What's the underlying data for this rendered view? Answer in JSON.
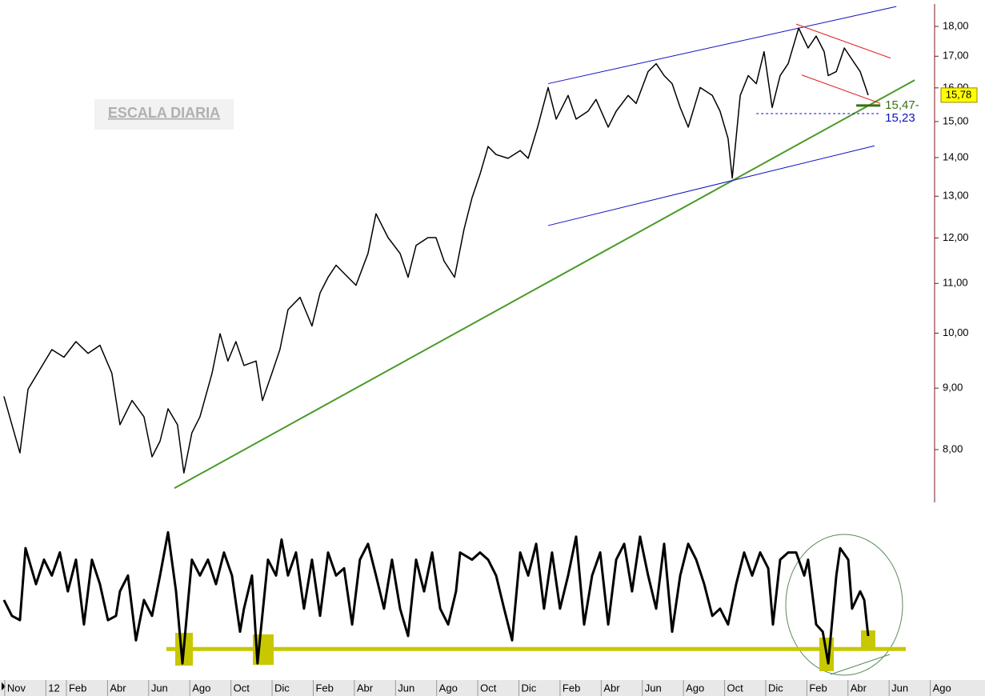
{
  "chart_data": [
    {
      "type": "line",
      "title": "ESCALA DIARIA",
      "log_scale": true,
      "color": "#000000",
      "xlim": [
        -0.54,
        47.35
      ],
      "xticks": [
        {
          "value": 0,
          "label": "Nov"
        },
        {
          "value": 2,
          "label": "12"
        },
        {
          "value": 3,
          "label": "Feb"
        },
        {
          "value": 5,
          "label": "Abr"
        },
        {
          "value": 7,
          "label": "Jun"
        },
        {
          "value": 9,
          "label": "Ago"
        },
        {
          "value": 11,
          "label": "Oct"
        },
        {
          "value": 13,
          "label": "Dic"
        },
        {
          "value": 15,
          "label": "Feb"
        },
        {
          "value": 17,
          "label": "Abr"
        },
        {
          "value": 19,
          "label": "Jun"
        },
        {
          "value": 21,
          "label": "Ago"
        },
        {
          "value": 23,
          "label": "Oct"
        },
        {
          "value": 25,
          "label": "Dic"
        },
        {
          "value": 27,
          "label": "Feb"
        },
        {
          "value": 29,
          "label": "Abr"
        },
        {
          "value": 31,
          "label": "Jun"
        },
        {
          "value": 33,
          "label": "Ago"
        },
        {
          "value": 35,
          "label": "Oct"
        },
        {
          "value": 37,
          "label": "Dic"
        },
        {
          "value": 39,
          "label": "Feb"
        },
        {
          "value": 41,
          "label": "Abr"
        },
        {
          "value": 43,
          "label": "Jun"
        },
        {
          "value": 45,
          "label": "Ago"
        }
      ],
      "ylim": [
        7.23,
        18.79
      ],
      "yticks": [
        {
          "value": 8,
          "label": "8,00"
        },
        {
          "value": 9,
          "label": "9,00"
        },
        {
          "value": 10,
          "label": "10,00"
        },
        {
          "value": 11,
          "label": "11,00"
        },
        {
          "value": 12,
          "label": "12,00"
        },
        {
          "value": 13,
          "label": "13,00"
        },
        {
          "value": 14,
          "label": "14,00"
        },
        {
          "value": 15,
          "label": "15,00"
        },
        {
          "value": 16,
          "label": "16,00"
        },
        {
          "value": 17,
          "label": "17,00"
        },
        {
          "value": 18,
          "label": "18,00"
        }
      ],
      "x": [
        -0.35,
        0.04,
        0.43,
        0.82,
        1.4,
        1.98,
        2.57,
        3.15,
        3.74,
        4.32,
        4.9,
        5.29,
        5.88,
        6.46,
        6.85,
        7.24,
        7.63,
        8.09,
        8.4,
        8.79,
        9.18,
        9.77,
        10.16,
        10.54,
        10.93,
        11.32,
        11.91,
        12.22,
        12.68,
        13.07,
        13.46,
        14.05,
        14.63,
        15.02,
        15.41,
        15.8,
        16.38,
        16.77,
        17.35,
        17.74,
        18.33,
        18.91,
        19.3,
        19.69,
        20.27,
        20.66,
        21.05,
        21.56,
        22.02,
        22.41,
        22.8,
        23.19,
        23.58,
        24.16,
        24.75,
        25.14,
        25.6,
        26.11,
        26.5,
        27.08,
        27.47,
        28.05,
        28.44,
        29.03,
        29.42,
        30.0,
        30.39,
        30.97,
        31.36,
        31.75,
        32.14,
        32.53,
        32.92,
        33.5,
        34.09,
        34.47,
        34.86,
        35.06,
        35.45,
        35.84,
        36.23,
        36.61,
        37.0,
        37.39,
        37.78,
        38.29,
        38.75,
        39.14,
        39.53,
        39.73,
        40.12,
        40.51,
        40.89,
        41.28,
        41.67
      ],
      "values": [
        8.86,
        8.39,
        7.95,
        8.98,
        9.33,
        9.69,
        9.55,
        9.84,
        9.62,
        9.77,
        9.26,
        8.39,
        8.79,
        8.52,
        7.89,
        8.13,
        8.65,
        8.39,
        7.65,
        8.26,
        8.52,
        9.26,
        9.99,
        9.48,
        9.84,
        9.4,
        9.48,
        8.79,
        9.26,
        9.69,
        10.46,
        10.71,
        10.14,
        10.8,
        11.13,
        11.39,
        11.13,
        10.96,
        11.65,
        12.57,
        12.01,
        11.65,
        11.13,
        11.83,
        12.01,
        12.01,
        11.48,
        11.13,
        12.2,
        12.96,
        13.56,
        14.3,
        14.08,
        13.98,
        14.19,
        13.98,
        14.84,
        16.01,
        15.07,
        15.77,
        15.07,
        15.3,
        15.65,
        14.84,
        15.3,
        15.77,
        15.53,
        16.51,
        16.76,
        16.38,
        16.13,
        15.41,
        14.84,
        16.01,
        15.77,
        15.3,
        14.52,
        13.46,
        15.77,
        16.38,
        16.13,
        17.15,
        15.41,
        16.38,
        16.76,
        17.94,
        17.27,
        17.67,
        17.15,
        16.38,
        16.51,
        17.27,
        16.89,
        16.51,
        15.78
      ],
      "trend_lines": [
        {
          "color": "#4a9a28",
          "x": [
            7.94,
            43.93
          ],
          "y": [
            7.43,
            16.24
          ]
        },
        {
          "color": "#1010c0",
          "x": [
            26.11,
            43.04
          ],
          "y": [
            16.13,
            18.7
          ]
        },
        {
          "color": "#1010c0",
          "x": [
            26.11,
            41.98
          ],
          "y": [
            12.29,
            14.32
          ]
        },
        {
          "color": "#e02020",
          "x": [
            38.17,
            42.76
          ],
          "y": [
            18.08,
            16.94
          ]
        },
        {
          "color": "#e02020",
          "x": [
            38.44,
            42.26
          ],
          "y": [
            16.4,
            15.53
          ]
        }
      ],
      "levels": [
        {
          "value": 15.47,
          "label": "15,47-",
          "color": "#3a7010",
          "x": [
            41.09,
            42.26
          ]
        },
        {
          "value": 15.23,
          "label": "15,23",
          "color": "#1010c0",
          "x": [
            36.23,
            42.26
          ]
        }
      ],
      "last_price": {
        "value": 15.78,
        "label": "15,78",
        "color": "#ffff00"
      }
    },
    {
      "type": "line",
      "color": "#000000",
      "ylim": [
        0,
        100
      ],
      "highlight_level": {
        "value": 16,
        "color": "#c8c800",
        "x": [
          7.55,
          43.5
        ]
      },
      "x": [
        -0.35,
        0.04,
        0.43,
        0.7,
        1.21,
        1.6,
        1.98,
        2.37,
        2.76,
        3.15,
        3.54,
        3.93,
        4.32,
        4.71,
        5.1,
        5.29,
        5.68,
        6.07,
        6.46,
        6.85,
        7.24,
        7.63,
        8.02,
        8.33,
        8.79,
        9.18,
        9.57,
        9.96,
        10.35,
        10.74,
        11.13,
        11.32,
        11.71,
        11.98,
        12.49,
        12.88,
        13.15,
        13.46,
        13.85,
        14.24,
        14.63,
        15.02,
        15.41,
        15.8,
        16.19,
        16.58,
        16.96,
        17.35,
        17.74,
        18.13,
        18.52,
        18.91,
        19.3,
        19.69,
        20.08,
        20.47,
        20.86,
        21.25,
        21.63,
        21.83,
        22.41,
        22.8,
        23.19,
        23.58,
        23.97,
        24.36,
        24.75,
        25.14,
        25.53,
        25.91,
        26.3,
        26.69,
        27.08,
        27.47,
        27.86,
        28.25,
        28.64,
        29.03,
        29.42,
        29.81,
        30.19,
        30.58,
        30.97,
        31.36,
        31.75,
        32.14,
        32.53,
        32.92,
        33.31,
        33.7,
        34.09,
        34.47,
        34.86,
        35.25,
        35.64,
        36.03,
        36.42,
        36.81,
        37.04,
        37.39,
        37.78,
        38.17,
        38.56,
        38.75,
        39.14,
        39.46,
        39.73,
        40.12,
        40.31,
        40.7,
        40.89,
        41.28,
        41.48,
        41.67
      ],
      "values": [
        50,
        39,
        36,
        86,
        61,
        78,
        67,
        83,
        56,
        78,
        33,
        78,
        61,
        36,
        39,
        56,
        67,
        22,
        50,
        39,
        67,
        97,
        56,
        6,
        78,
        67,
        78,
        61,
        83,
        67,
        28,
        44,
        67,
        6,
        78,
        67,
        92,
        67,
        83,
        44,
        78,
        39,
        83,
        67,
        72,
        33,
        78,
        89,
        67,
        44,
        78,
        44,
        25,
        78,
        56,
        83,
        44,
        33,
        56,
        83,
        78,
        83,
        78,
        67,
        44,
        22,
        83,
        67,
        89,
        44,
        83,
        44,
        67,
        94,
        33,
        67,
        83,
        33,
        78,
        89,
        56,
        94,
        67,
        44,
        89,
        28,
        67,
        89,
        78,
        61,
        39,
        44,
        33,
        61,
        83,
        67,
        83,
        72,
        33,
        78,
        83,
        83,
        67,
        78,
        33,
        28,
        6,
        67,
        86,
        78,
        44,
        56,
        50,
        25
      ]
    }
  ]
}
